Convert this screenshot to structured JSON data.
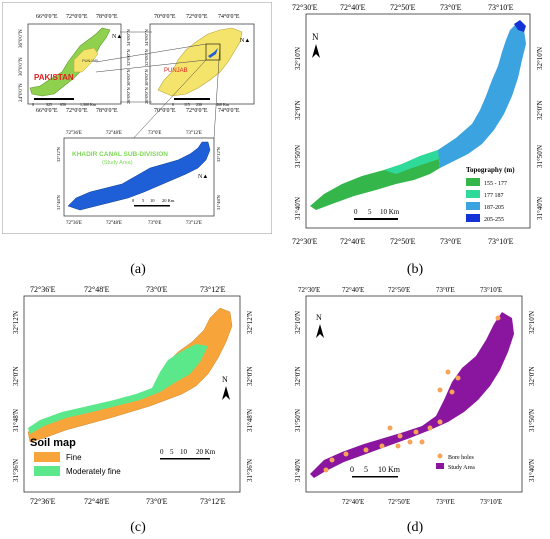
{
  "captions": [
    "(a)",
    "(b)",
    "(c)",
    "(d)"
  ],
  "panel_a": {
    "pakistan_map": {
      "lon_ticks": [
        "66°0'0\"E",
        "72°0'0\"E",
        "78°0'0\"E"
      ],
      "lat_ticks": [
        "36°0'0\"N",
        "30°0'0\"N",
        "24°0'0\"N"
      ],
      "country_label": "PAKISTAN",
      "province_label": "PUNJAB",
      "scale_labels": [
        "0",
        "325",
        "650",
        "1,300 Km"
      ]
    },
    "punjab_map": {
      "lon_ticks": [
        "70°0'0\"E",
        "72°0'0\"E",
        "74°0'0\"E"
      ],
      "lat_ticks": [
        "34°0'0\"N",
        "32°0'0\"N",
        "30°0'0\"N",
        "28°0'0\"N"
      ],
      "province_label": "PUNJAB",
      "scale_labels": [
        "0",
        "115",
        "230",
        "460 Km"
      ]
    },
    "study_map": {
      "lon_ticks": [
        "72°36'E",
        "72°48'E",
        "73°0'E",
        "73°12'E"
      ],
      "lat_ticks": [
        "32°12'N",
        "31°48'N"
      ],
      "title_line1": "KHADIR CANAL SUB-DIVISION",
      "title_line2": "(Study Area)",
      "scale_labels": [
        "0",
        "5",
        "10",
        "20 Km"
      ]
    },
    "colors": {
      "pakistan": "#8fd14f",
      "punjab": "#f5e46b",
      "study": "#1e5fd8"
    }
  },
  "panel_b": {
    "lon_ticks": [
      "72°30'E",
      "72°40'E",
      "72°50'E",
      "73°0'E",
      "73°10'E"
    ],
    "lat_ticks": [
      "32°10'N",
      "32°0'N",
      "31°50'N",
      "31°40'N"
    ],
    "legend_title": "Topography (m)",
    "legend": [
      {
        "label": "155 - 177",
        "color": "#34b64a"
      },
      {
        "label": "177 187",
        "color": "#2fd99a"
      },
      {
        "label": "187-205",
        "color": "#3aa3e0"
      },
      {
        "label": "205-255",
        "color": "#1433d6"
      }
    ],
    "scale_labels": [
      "0",
      "5",
      "10 Km"
    ],
    "north": "N"
  },
  "panel_c": {
    "lon_ticks": [
      "72°36'E",
      "72°48'E",
      "73°0'E",
      "73°12'E"
    ],
    "lat_ticks": [
      "32°12'N",
      "32°0'N",
      "31°48'N",
      "31°36'N"
    ],
    "legend_title": "Soil map",
    "legend": [
      {
        "label": "Fine",
        "color": "#f7a43a"
      },
      {
        "label": "Moderately fine",
        "color": "#5be88a"
      }
    ],
    "scale_labels": [
      "0",
      "5",
      "10",
      "20 Km"
    ],
    "north": "N"
  },
  "panel_d": {
    "lon_ticks": [
      "72°30'E",
      "72°40'E",
      "72°50'E",
      "73°0'E",
      "73°10'E"
    ],
    "lat_ticks": [
      "32°10'N",
      "32°0'N",
      "31°50'N",
      "31°40'N"
    ],
    "legend": [
      {
        "label": "Bore holes",
        "color": "#f6a45a"
      },
      {
        "label": "Study Area",
        "color": "#8a159e"
      }
    ],
    "scale_labels": [
      "0",
      "5",
      "10 Km"
    ],
    "north": "N"
  }
}
